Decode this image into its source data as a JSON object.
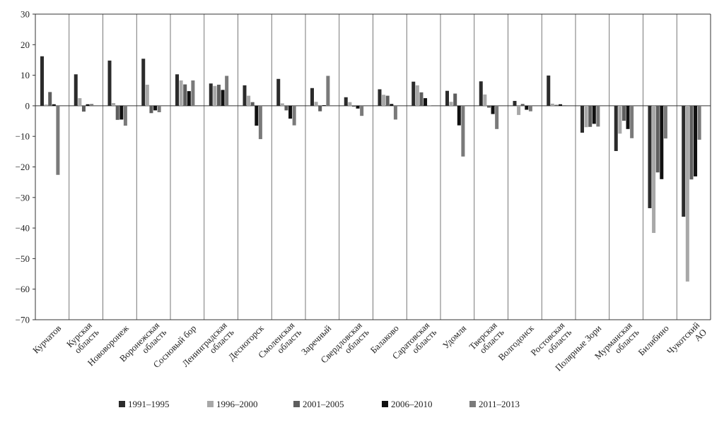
{
  "chart_data": {
    "type": "bar",
    "title": "",
    "xlabel": "",
    "ylabel": "",
    "ylim": [
      -70,
      30
    ],
    "yticks": [
      30,
      20,
      10,
      0,
      -10,
      -20,
      -30,
      -40,
      -50,
      -60,
      -70
    ],
    "ytick_labels": [
      "30",
      "20",
      "10",
      "0",
      "−10",
      "−20",
      "−30",
      "−40",
      "−50",
      "−60",
      "−70"
    ],
    "grid": false,
    "legend_position": "bottom",
    "categories": [
      [
        "Курчатов"
      ],
      [
        "Курская",
        "область"
      ],
      [
        "Нововоронеж"
      ],
      [
        "Воронежская",
        "область"
      ],
      [
        "Сосновый бор"
      ],
      [
        "Ленинградская",
        "область"
      ],
      [
        "Десногорск"
      ],
      [
        "Смоленская",
        "область"
      ],
      [
        "Заречный"
      ],
      [
        "Свердловская",
        "область"
      ],
      [
        "Балаково"
      ],
      [
        "Саратовская",
        "область"
      ],
      [
        "Удомля"
      ],
      [
        "Тверская",
        "область"
      ],
      [
        "Волгодонск"
      ],
      [
        "Ростовская",
        "область"
      ],
      [
        "Полярные Зори"
      ],
      [
        "Мурманская",
        "область"
      ],
      [
        "Билибино"
      ],
      [
        "Чукотский",
        "АО"
      ]
    ],
    "series": [
      {
        "name": "1991–1995",
        "color": "#2b2b2b",
        "values": [
          16.2,
          10.3,
          14.8,
          15.4,
          10.3,
          7.3,
          6.7,
          8.8,
          5.8,
          2.8,
          5.4,
          7.9,
          4.9,
          8.0,
          1.6,
          9.9,
          -8.8,
          -14.8,
          -33.5,
          -36.3
        ]
      },
      {
        "name": "1996–2000",
        "color": "#a8a8a8",
        "values": [
          0.4,
          2.5,
          0.9,
          6.9,
          8.3,
          6.5,
          3.3,
          0.8,
          1.3,
          1.2,
          3.6,
          6.7,
          1.3,
          3.7,
          -3.0,
          0.7,
          -7.0,
          -9.1,
          -41.6,
          -57.5
        ]
      },
      {
        "name": "2001–2005",
        "color": "#5e5e5e",
        "values": [
          4.5,
          -1.9,
          -4.6,
          -2.4,
          7.0,
          6.9,
          1.2,
          -1.5,
          -1.8,
          -0.3,
          3.3,
          4.4,
          4.0,
          -0.6,
          0.6,
          0.3,
          -6.9,
          -4.9,
          -21.8,
          -24.1
        ]
      },
      {
        "name": "2006–2010",
        "color": "#101010",
        "values": [
          0.5,
          0.5,
          -4.5,
          -1.5,
          4.8,
          5.2,
          -6.5,
          -4.2,
          0.2,
          -0.9,
          0.6,
          2.5,
          -6.4,
          -2.7,
          -1.3,
          0.5,
          -5.9,
          -7.6,
          -24.0,
          -23.1
        ]
      },
      {
        "name": "2011–2013",
        "color": "#7a7a7a",
        "values": [
          -22.6,
          0.6,
          -6.5,
          -2.1,
          8.3,
          9.8,
          -10.9,
          -6.4,
          9.8,
          -3.3,
          -4.5,
          0.1,
          -16.6,
          -7.6,
          -1.8,
          0.2,
          -6.8,
          -10.6,
          -10.7,
          -11.1
        ]
      }
    ]
  }
}
